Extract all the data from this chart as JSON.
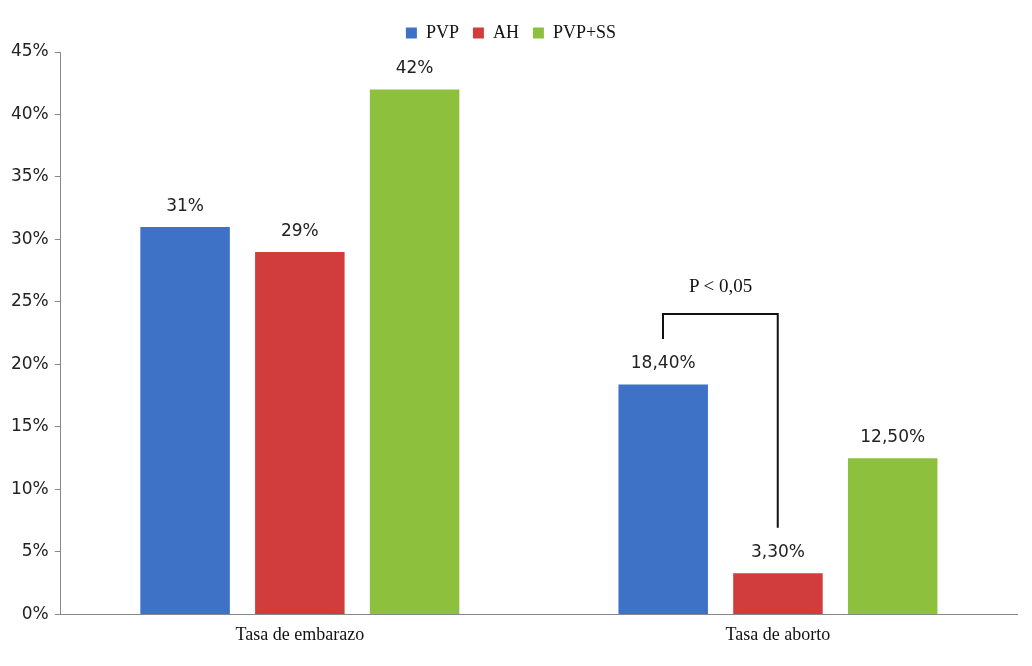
{
  "chart_data": {
    "type": "bar",
    "categories": [
      "Tasa de embarazo",
      "Tasa de aborto"
    ],
    "series": [
      {
        "name": "PVP",
        "color": "#3d72c6",
        "values": [
          31,
          18.4
        ],
        "value_labels": [
          "31%",
          "18,40%"
        ]
      },
      {
        "name": "AH",
        "color": "#d13d3d",
        "values": [
          29,
          3.3
        ],
        "value_labels": [
          "29%",
          "3,30%"
        ]
      },
      {
        "name": "PVP+SS",
        "color": "#8dc03c",
        "values": [
          42,
          12.5
        ],
        "value_labels": [
          "42%",
          "12,50%"
        ]
      }
    ],
    "ylim": [
      0,
      45
    ],
    "yticks": [
      {
        "value": 0,
        "label": "0%"
      },
      {
        "value": 5,
        "label": "5%"
      },
      {
        "value": 10,
        "label": "10%"
      },
      {
        "value": 15,
        "label": "15%"
      },
      {
        "value": 20,
        "label": "20%"
      },
      {
        "value": 25,
        "label": "25%"
      },
      {
        "value": 30,
        "label": "30%"
      },
      {
        "value": 35,
        "label": "35%"
      },
      {
        "value": 40,
        "label": "40%"
      },
      {
        "value": 45,
        "label": "45%"
      }
    ],
    "grid": false,
    "legend": "top",
    "annotations": [
      "P < 0,05"
    ]
  }
}
